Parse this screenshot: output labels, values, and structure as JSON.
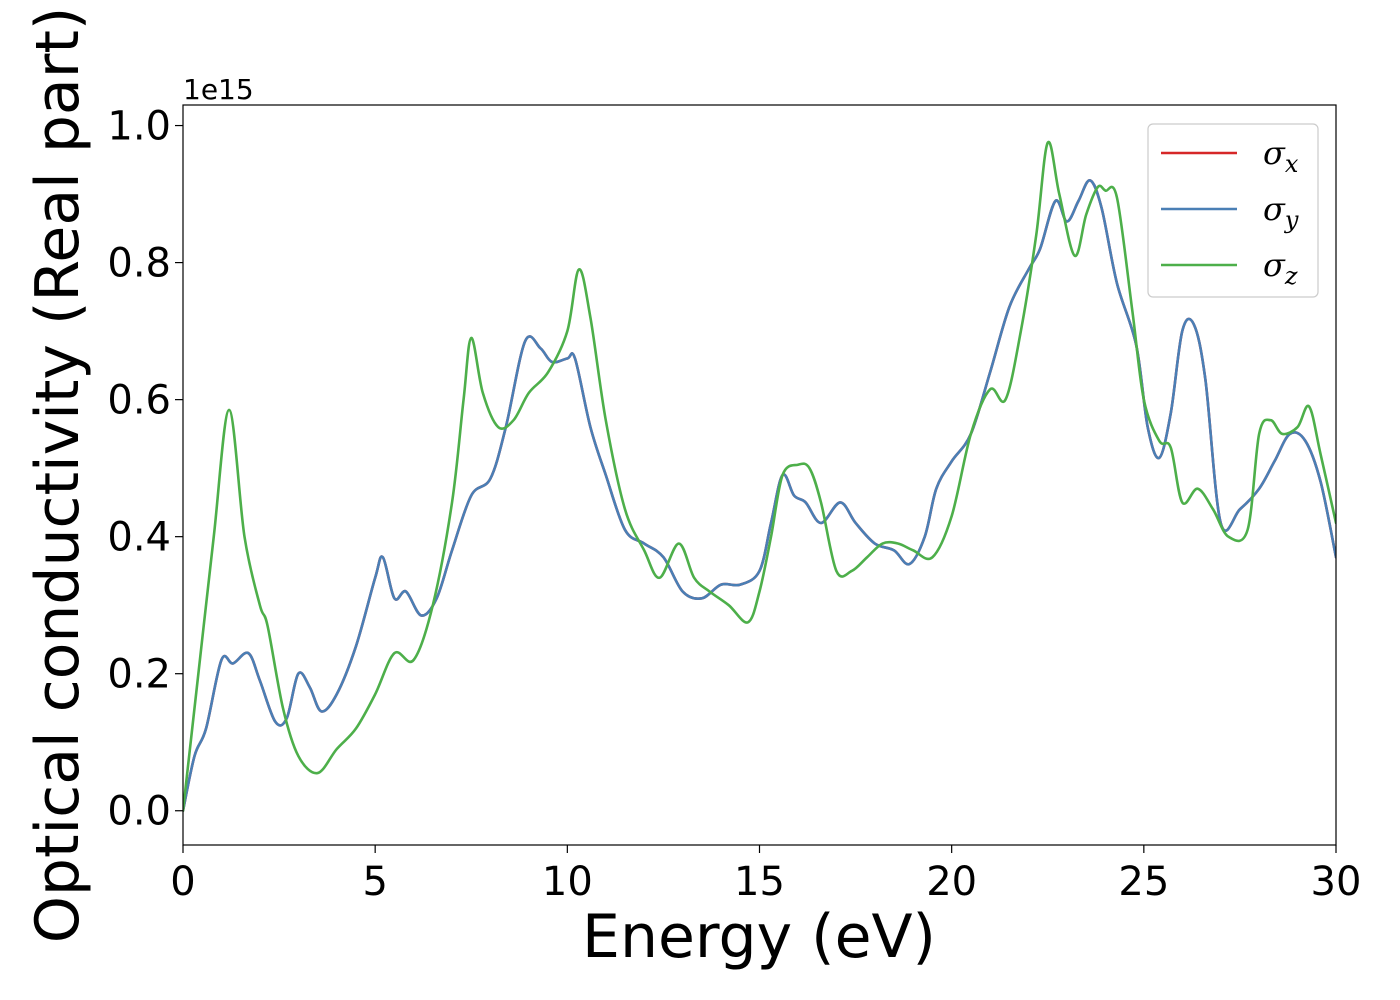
{
  "chart_data": {
    "type": "line",
    "title": "",
    "xlabel": "Energy (eV)",
    "ylabel": "Optical conductivity (Real part)",
    "offset_text": "1e15",
    "xlim": [
      0,
      30
    ],
    "ylim": [
      -0.05,
      1.03
    ],
    "x_ticks": [
      0,
      5,
      10,
      15,
      20,
      25,
      30
    ],
    "x_tick_labels": [
      "0",
      "5",
      "10",
      "15",
      "20",
      "25",
      "30"
    ],
    "y_ticks": [
      0.0,
      0.2,
      0.4,
      0.6,
      0.8,
      1.0
    ],
    "y_tick_labels": [
      "0.0",
      "0.2",
      "0.4",
      "0.6",
      "0.8",
      "1.0"
    ],
    "grid": false,
    "legend_position": "top-right",
    "series": [
      {
        "name": "σx",
        "label_base": "σ",
        "label_sub": "x",
        "color": "#d62728",
        "x": [
          0,
          0.3,
          0.6,
          1.0,
          1.3,
          1.7,
          2.0,
          2.4,
          2.7,
          3.0,
          3.3,
          3.6,
          4.0,
          4.5,
          5.0,
          5.2,
          5.5,
          5.8,
          6.2,
          6.6,
          7.0,
          7.5,
          8.0,
          8.4,
          8.9,
          9.3,
          9.6,
          10.0,
          10.2,
          10.6,
          11.0,
          11.5,
          12.0,
          12.5,
          13.0,
          13.5,
          14.0,
          14.5,
          15.0,
          15.3,
          15.6,
          15.9,
          16.2,
          16.6,
          17.1,
          17.5,
          18.0,
          18.5,
          18.9,
          19.3,
          19.6,
          20.0,
          20.5,
          21.0,
          21.5,
          22.0,
          22.3,
          22.7,
          23.0,
          23.3,
          23.6,
          23.9,
          24.3,
          24.8,
          25.1,
          25.4,
          25.7,
          26.0,
          26.3,
          26.6,
          27.0,
          27.5,
          28.0,
          28.4,
          28.8,
          29.2,
          29.6,
          30.0
        ],
        "values": [
          0.0,
          0.08,
          0.12,
          0.22,
          0.215,
          0.23,
          0.19,
          0.13,
          0.135,
          0.2,
          0.18,
          0.145,
          0.17,
          0.24,
          0.34,
          0.37,
          0.31,
          0.32,
          0.285,
          0.31,
          0.38,
          0.46,
          0.485,
          0.56,
          0.685,
          0.675,
          0.655,
          0.66,
          0.66,
          0.56,
          0.49,
          0.41,
          0.39,
          0.37,
          0.32,
          0.31,
          0.33,
          0.33,
          0.35,
          0.42,
          0.49,
          0.46,
          0.45,
          0.42,
          0.45,
          0.42,
          0.39,
          0.38,
          0.36,
          0.4,
          0.47,
          0.51,
          0.55,
          0.64,
          0.735,
          0.79,
          0.82,
          0.89,
          0.86,
          0.89,
          0.92,
          0.88,
          0.77,
          0.68,
          0.56,
          0.515,
          0.58,
          0.7,
          0.71,
          0.63,
          0.42,
          0.44,
          0.47,
          0.51,
          0.55,
          0.54,
          0.48,
          0.37
        ]
      },
      {
        "name": "σy",
        "label_base": "σ",
        "label_sub": "y",
        "color": "#4a7fb5",
        "x": [
          0,
          0.3,
          0.6,
          1.0,
          1.3,
          1.7,
          2.0,
          2.4,
          2.7,
          3.0,
          3.3,
          3.6,
          4.0,
          4.5,
          5.0,
          5.2,
          5.5,
          5.8,
          6.2,
          6.6,
          7.0,
          7.5,
          8.0,
          8.4,
          8.9,
          9.3,
          9.6,
          10.0,
          10.2,
          10.6,
          11.0,
          11.5,
          12.0,
          12.5,
          13.0,
          13.5,
          14.0,
          14.5,
          15.0,
          15.3,
          15.6,
          15.9,
          16.2,
          16.6,
          17.1,
          17.5,
          18.0,
          18.5,
          18.9,
          19.3,
          19.6,
          20.0,
          20.5,
          21.0,
          21.5,
          22.0,
          22.3,
          22.7,
          23.0,
          23.3,
          23.6,
          23.9,
          24.3,
          24.8,
          25.1,
          25.4,
          25.7,
          26.0,
          26.3,
          26.6,
          27.0,
          27.5,
          28.0,
          28.4,
          28.8,
          29.2,
          29.6,
          30.0
        ],
        "values": [
          0.0,
          0.08,
          0.12,
          0.22,
          0.215,
          0.23,
          0.19,
          0.13,
          0.135,
          0.2,
          0.18,
          0.145,
          0.17,
          0.24,
          0.34,
          0.37,
          0.31,
          0.32,
          0.285,
          0.31,
          0.38,
          0.46,
          0.485,
          0.56,
          0.685,
          0.675,
          0.655,
          0.66,
          0.66,
          0.56,
          0.49,
          0.41,
          0.39,
          0.37,
          0.32,
          0.31,
          0.33,
          0.33,
          0.35,
          0.42,
          0.49,
          0.46,
          0.45,
          0.42,
          0.45,
          0.42,
          0.39,
          0.38,
          0.36,
          0.4,
          0.47,
          0.51,
          0.55,
          0.64,
          0.735,
          0.79,
          0.82,
          0.89,
          0.86,
          0.89,
          0.92,
          0.88,
          0.77,
          0.68,
          0.56,
          0.515,
          0.58,
          0.7,
          0.71,
          0.63,
          0.42,
          0.44,
          0.47,
          0.51,
          0.55,
          0.54,
          0.48,
          0.37
        ]
      },
      {
        "name": "σz",
        "label_base": "σ",
        "label_sub": "z",
        "color": "#4daf4a",
        "x": [
          0,
          0.4,
          0.8,
          1.2,
          1.6,
          2.0,
          2.2,
          2.6,
          3.0,
          3.5,
          4.0,
          4.5,
          5.0,
          5.5,
          6.0,
          6.5,
          7.0,
          7.3,
          7.5,
          7.8,
          8.2,
          8.6,
          9.0,
          9.5,
          10.0,
          10.3,
          10.6,
          11.0,
          11.5,
          12.0,
          12.4,
          12.9,
          13.3,
          13.7,
          14.2,
          14.7,
          15.0,
          15.3,
          15.6,
          16.0,
          16.3,
          16.6,
          17.0,
          17.4,
          17.8,
          18.2,
          18.6,
          19.0,
          19.5,
          20.0,
          20.5,
          21.0,
          21.4,
          21.8,
          22.2,
          22.5,
          22.8,
          23.2,
          23.5,
          23.8,
          24.0,
          24.3,
          24.7,
          25.0,
          25.4,
          25.7,
          26.0,
          26.4,
          26.8,
          27.2,
          27.7,
          28.0,
          28.3,
          28.6,
          29.0,
          29.3,
          29.6,
          30.0
        ],
        "values": [
          0.0,
          0.2,
          0.4,
          0.585,
          0.4,
          0.3,
          0.27,
          0.15,
          0.08,
          0.055,
          0.09,
          0.12,
          0.17,
          0.23,
          0.22,
          0.3,
          0.45,
          0.6,
          0.69,
          0.61,
          0.56,
          0.57,
          0.61,
          0.64,
          0.7,
          0.79,
          0.72,
          0.57,
          0.44,
          0.38,
          0.34,
          0.39,
          0.34,
          0.32,
          0.3,
          0.275,
          0.32,
          0.4,
          0.49,
          0.505,
          0.5,
          0.45,
          0.35,
          0.35,
          0.37,
          0.39,
          0.39,
          0.38,
          0.37,
          0.43,
          0.55,
          0.615,
          0.6,
          0.7,
          0.84,
          0.975,
          0.9,
          0.81,
          0.87,
          0.91,
          0.905,
          0.895,
          0.73,
          0.6,
          0.54,
          0.53,
          0.45,
          0.47,
          0.44,
          0.4,
          0.41,
          0.55,
          0.57,
          0.55,
          0.56,
          0.59,
          0.52,
          0.42
        ]
      }
    ]
  }
}
